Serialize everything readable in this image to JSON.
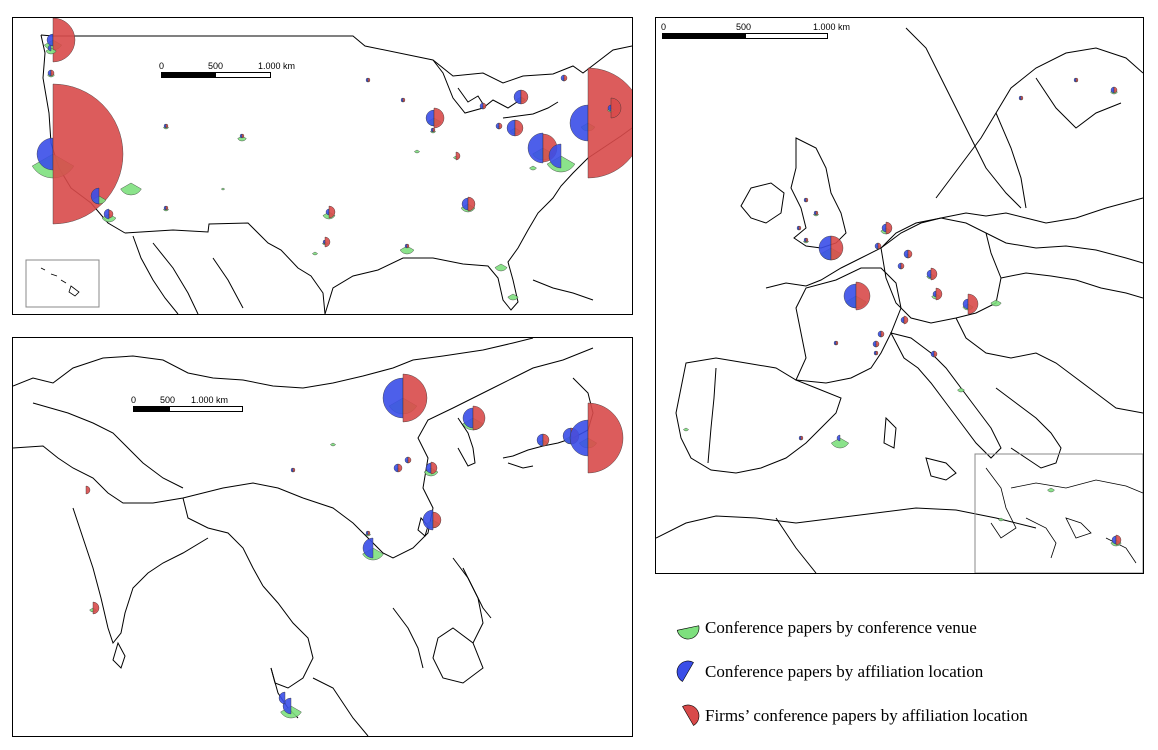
{
  "colors": {
    "venue": "#7ee07e",
    "affiliation": "#3a4ee8",
    "firms": "#d84a4a",
    "border": "#000000"
  },
  "panels": {
    "usa": {
      "scale_labels": [
        "0",
        "500",
        "1.000 km"
      ]
    },
    "asia": {
      "scale_labels": [
        "0",
        "500",
        "1.000 km"
      ]
    },
    "europe": {
      "scale_labels": [
        "0",
        "500",
        "1.000 km"
      ]
    }
  },
  "legend": [
    {
      "key": "venue",
      "label": "Conference papers by conference venue",
      "icon": "green-half-circle-icon"
    },
    {
      "key": "affiliation",
      "label": "Conference papers by affiliation location",
      "icon": "blue-half-circle-icon"
    },
    {
      "key": "firms",
      "label": "Firms’ conference papers by affiliation location",
      "icon": "red-half-circle-icon"
    }
  ]
}
